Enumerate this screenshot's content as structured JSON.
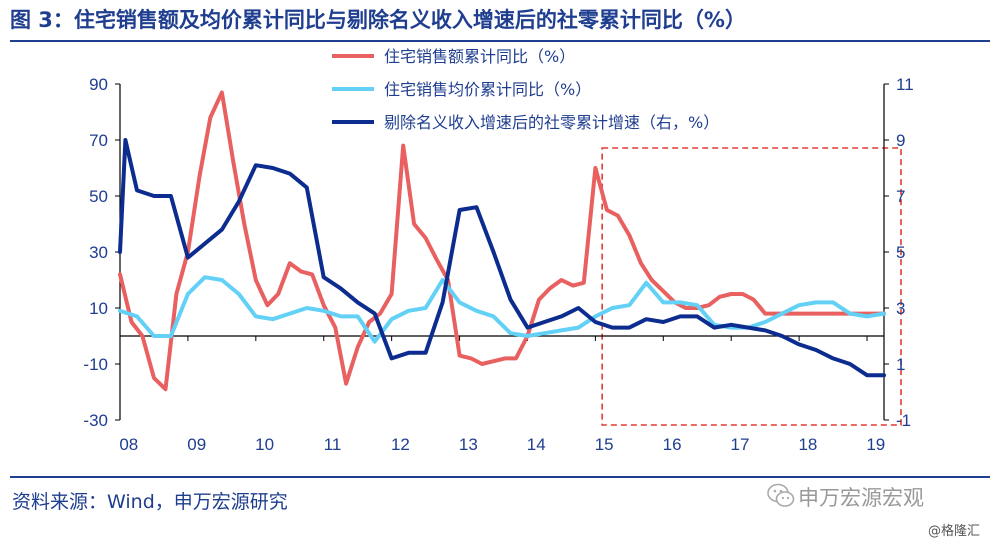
{
  "title": "图 3：住宅销售额及均价累计同比与剔除名义收入增速后的社零累计同比（%）",
  "source": "资料来源：Wind，申万宏源研究",
  "watermark": {
    "brand": "申万宏源宏观",
    "site": "@格隆汇",
    "icon": "wechat-icon"
  },
  "colors": {
    "sales": "#e8605f",
    "price": "#63d0f5",
    "retail": "#0d2c8f",
    "axis": "#1f3e8f",
    "highlight": "#e23a33"
  },
  "chart_data": {
    "type": "line",
    "x_ticks": [
      "08",
      "09",
      "10",
      "11",
      "12",
      "13",
      "14",
      "15",
      "16",
      "17",
      "18",
      "19"
    ],
    "x_range": [
      2008.0,
      2019.25
    ],
    "left_axis": {
      "ticks": [
        90,
        70,
        50,
        30,
        10,
        -10,
        -30
      ],
      "range": [
        -30,
        90
      ]
    },
    "right_axis": {
      "ticks": [
        11,
        9,
        7,
        5,
        3,
        1,
        -1
      ],
      "range": [
        -1,
        11
      ]
    },
    "legend": {
      "placement": "top-center"
    },
    "highlight_box": {
      "x_start": 2015.1,
      "x_end": 2019.25,
      "style": "dashed"
    },
    "series": [
      {
        "name": "住宅销售额累计同比（%）",
        "axis": "left",
        "x": [
          2008.0,
          2008.17,
          2008.33,
          2008.5,
          2008.67,
          2008.83,
          2009.0,
          2009.17,
          2009.33,
          2009.5,
          2009.67,
          2009.83,
          2010.0,
          2010.17,
          2010.33,
          2010.5,
          2010.67,
          2010.83,
          2011.0,
          2011.17,
          2011.33,
          2011.5,
          2011.67,
          2011.83,
          2012.0,
          2012.17,
          2012.33,
          2012.5,
          2012.67,
          2012.83,
          2013.0,
          2013.17,
          2013.33,
          2013.5,
          2013.67,
          2013.83,
          2014.0,
          2014.17,
          2014.33,
          2014.5,
          2014.67,
          2014.83,
          2015.0,
          2015.17,
          2015.33,
          2015.5,
          2015.67,
          2015.83,
          2016.0,
          2016.17,
          2016.33,
          2016.5,
          2016.67,
          2016.83,
          2017.0,
          2017.17,
          2017.33,
          2017.5,
          2017.67,
          2017.83,
          2018.0,
          2018.17,
          2018.33,
          2018.5,
          2018.67,
          2018.83,
          2019.0,
          2019.17,
          2019.25
        ],
        "values": [
          22,
          5,
          0,
          -15,
          -19,
          15,
          30,
          57,
          78,
          87,
          62,
          40,
          20,
          11,
          15,
          26,
          23,
          22,
          11,
          3,
          -17,
          -4,
          5,
          8,
          15,
          68,
          40,
          35,
          27,
          20,
          -7,
          -8,
          -10,
          -9,
          -8,
          -8,
          0,
          13,
          17,
          20,
          18,
          19,
          60,
          45,
          43,
          36,
          26,
          20,
          16,
          12,
          10,
          10,
          11,
          14,
          15,
          15,
          13,
          8,
          8,
          8,
          8,
          8,
          8,
          8,
          8,
          8,
          8,
          8,
          8
        ]
      },
      {
        "name": "住宅销售均价累计同比（%）",
        "axis": "left",
        "x": [
          2008.0,
          2008.25,
          2008.5,
          2008.75,
          2009.0,
          2009.25,
          2009.5,
          2009.75,
          2010.0,
          2010.25,
          2010.5,
          2010.75,
          2011.0,
          2011.25,
          2011.5,
          2011.75,
          2012.0,
          2012.25,
          2012.5,
          2012.75,
          2013.0,
          2013.25,
          2013.5,
          2013.75,
          2014.0,
          2014.25,
          2014.5,
          2014.75,
          2015.0,
          2015.25,
          2015.5,
          2015.75,
          2016.0,
          2016.25,
          2016.5,
          2016.75,
          2017.0,
          2017.25,
          2017.5,
          2017.75,
          2018.0,
          2018.25,
          2018.5,
          2018.75,
          2019.0,
          2019.25
        ],
        "values": [
          9,
          7,
          0,
          0,
          15,
          21,
          20,
          15,
          7,
          6,
          8,
          10,
          9,
          7,
          7,
          -2,
          6,
          9,
          10,
          20,
          12,
          9,
          7,
          1,
          0,
          1,
          2,
          3,
          7,
          10,
          11,
          19,
          12,
          12,
          11,
          4,
          3,
          3,
          5,
          8,
          11,
          12,
          12,
          8,
          7,
          8
        ]
      },
      {
        "name": "剔除名义收入增速后的社零累计增速（右，%）",
        "axis": "right",
        "x": [
          2008.0,
          2008.08,
          2008.25,
          2008.5,
          2008.75,
          2009.0,
          2009.25,
          2009.5,
          2009.75,
          2010.0,
          2010.25,
          2010.5,
          2010.75,
          2011.0,
          2011.25,
          2011.5,
          2011.75,
          2012.0,
          2012.25,
          2012.5,
          2012.75,
          2013.0,
          2013.25,
          2013.5,
          2013.75,
          2014.0,
          2014.25,
          2014.5,
          2014.75,
          2015.0,
          2015.25,
          2015.5,
          2015.75,
          2016.0,
          2016.25,
          2016.5,
          2016.75,
          2017.0,
          2017.25,
          2017.5,
          2017.75,
          2018.0,
          2018.25,
          2018.5,
          2018.75,
          2019.0,
          2019.25
        ],
        "values": [
          5.0,
          9.0,
          7.2,
          7.0,
          7.0,
          4.8,
          5.3,
          5.8,
          6.8,
          8.1,
          8.0,
          7.8,
          7.3,
          4.1,
          3.7,
          3.2,
          2.8,
          1.2,
          1.4,
          1.4,
          3.2,
          6.5,
          6.6,
          5.0,
          3.3,
          2.3,
          2.5,
          2.7,
          3.0,
          2.5,
          2.3,
          2.3,
          2.6,
          2.5,
          2.7,
          2.7,
          2.3,
          2.4,
          2.3,
          2.2,
          2.0,
          1.7,
          1.5,
          1.2,
          1.0,
          0.6,
          0.6
        ]
      }
    ]
  }
}
